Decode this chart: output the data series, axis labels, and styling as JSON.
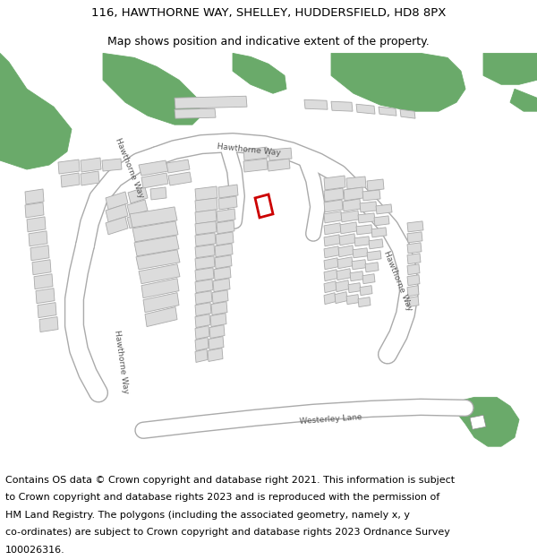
{
  "title_line1": "116, HAWTHORNE WAY, SHELLEY, HUDDERSFIELD, HD8 8PX",
  "title_line2": "Map shows position and indicative extent of the property.",
  "footer_text": "Contains OS data © Crown copyright and database right 2021. This information is subject to Crown copyright and database rights 2023 and is reproduced with the permission of HM Land Registry. The polygons (including the associated geometry, namely x, y co-ordinates) are subject to Crown copyright and database rights 2023 Ordnance Survey 100026316.",
  "title_fontsize": 9.5,
  "footer_fontsize": 8.0,
  "map_bg": "#ffffff",
  "green_color": "#6aaa6a",
  "building_color": "#dcdcdc",
  "building_edge": "#aaaaaa",
  "road_color": "#ffffff",
  "road_edge": "#aaaaaa",
  "highlight_color": "#cc0000",
  "text_color": "#555555"
}
